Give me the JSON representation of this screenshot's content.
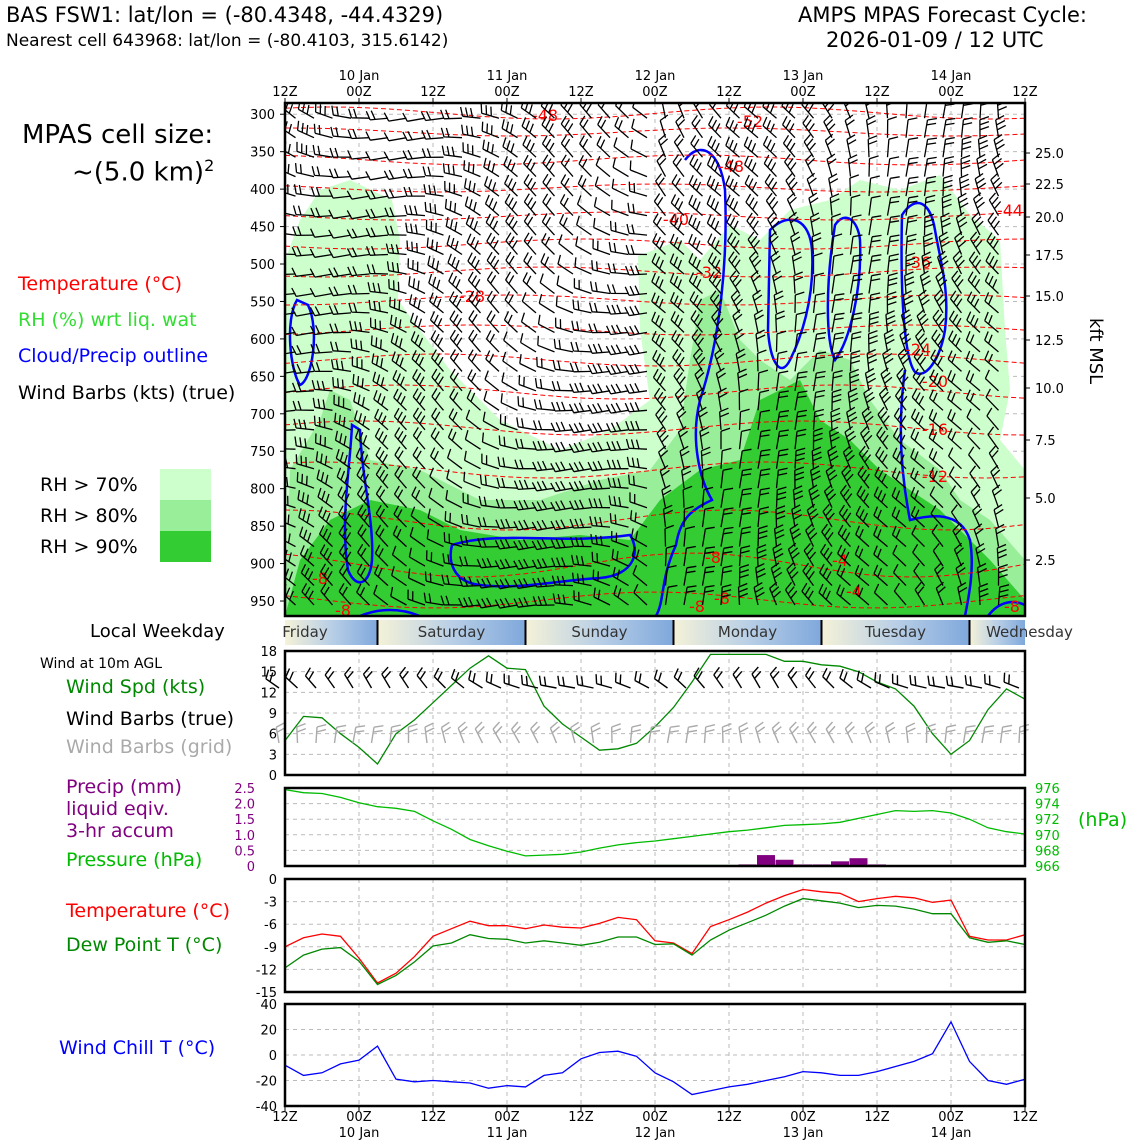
{
  "header": {
    "station": "BAS FSW1: lat/lon = (-80.4348, -44.4329)",
    "nearest": "Nearest cell 643968: lat/lon = (-80.4103, 315.6142)",
    "cycle_title": "AMPS MPAS Forecast Cycle:",
    "cycle_date": "2026-01-09 / 12 UTC"
  },
  "cell_size": {
    "line1": "MPAS cell size:",
    "line2": "~(5.0 km)",
    "sup": "2"
  },
  "legend": {
    "temperature": "Temperature (°C)",
    "rh": "RH (%) wrt liq. wat",
    "cloud": "Cloud/Precip outline",
    "barbs": "Wind Barbs (kts) (true)",
    "rh70": "RH > 70%",
    "rh80": "RH > 80%",
    "rh90": "RH > 90%"
  },
  "colors": {
    "temperature": "#ff0000",
    "rh_label": "#33dd33",
    "cloud": "#0000ff",
    "rh70": "#ccffcc",
    "rh80": "#99ee99",
    "rh90": "#33cc33",
    "wind_speed": "#008800",
    "precip": "#800080",
    "pressure": "#00bb00",
    "dewpoint": "#008800",
    "windchill": "#0000ff",
    "grid_barbs": "#aaaaaa"
  },
  "local_weekday": {
    "label": "Local Weekday",
    "days": [
      "Friday",
      "Saturday",
      "Sunday",
      "Monday",
      "Tuesday",
      "Wednesday"
    ]
  },
  "wind_panel": {
    "title": "Wind at 10m AGL",
    "label_speed": "Wind Spd (kts)",
    "label_barbs_true": "Wind Barbs (true)",
    "label_barbs_grid": "Wind Barbs (grid)"
  },
  "precip_panel": {
    "label1": "Precip (mm)",
    "label2": "liquid eqiv.",
    "label3": "3-hr accum",
    "label_pressure": "Pressure (hPa)",
    "unit_right": "(hPa)"
  },
  "temp_panel": {
    "label_t": "Temperature (°C)",
    "label_td": "Dew Point T (°C)"
  },
  "chill_panel": {
    "label": "Wind Chill T (°C)"
  },
  "time_axis": {
    "hour_labels": [
      "12Z",
      "00Z",
      "12Z",
      "00Z",
      "12Z",
      "00Z",
      "12Z",
      "00Z",
      "12Z",
      "00Z",
      "12Z"
    ],
    "date_labels": [
      "10 Jan",
      "11 Jan",
      "12 Jan",
      "13 Jan",
      "14 Jan"
    ]
  },
  "chart_data": [
    {
      "type": "heatmap",
      "name": "time-height cross section",
      "y_left_label": "",
      "y_left_ticks": [
        300,
        350,
        400,
        450,
        500,
        550,
        600,
        650,
        700,
        750,
        800,
        850,
        900,
        950
      ],
      "y_right_label": "kft MSL",
      "y_right_ticks": [
        "25.0",
        "22.5",
        "20.0",
        "17.5",
        "15.0",
        "12.5",
        "10.0",
        "7.5",
        "5.0",
        "2.5"
      ],
      "ylim": [
        970,
        285
      ],
      "temperature_contour_labels": [
        "-48",
        "-52",
        "-48",
        "-44",
        "-40",
        "-36",
        "-32",
        "-28",
        "-24",
        "-20",
        "-16",
        "-12",
        "-8",
        "-8",
        "-8",
        "-8",
        "-8",
        "-4",
        "-8",
        "-4"
      ],
      "rh_levels": [
        70,
        80,
        90
      ]
    },
    {
      "type": "line",
      "name": "wind speed 10m",
      "x_hours": [
        0,
        3,
        6,
        9,
        12,
        15,
        18,
        21,
        24,
        27,
        30,
        33,
        36,
        39,
        42,
        45,
        48,
        51,
        54,
        57,
        60,
        63,
        66,
        69,
        72,
        75,
        78,
        81,
        84,
        87,
        90,
        93,
        96,
        99,
        102,
        105,
        108,
        111,
        114,
        117,
        120
      ],
      "values": [
        5,
        8.5,
        8.3,
        6,
        4,
        1.6,
        6,
        8,
        10.5,
        13,
        15.5,
        17.3,
        15.5,
        15.3,
        10,
        7.4,
        5.5,
        3.6,
        3.8,
        4.6,
        7,
        9.8,
        13.5,
        17.5,
        17.5,
        17.5,
        17.5,
        16.5,
        16.5,
        16,
        15.8,
        15,
        13.5,
        12.5,
        10,
        6,
        3,
        5,
        9.5,
        12.5,
        11
      ],
      "ylim": [
        0,
        18
      ],
      "y_ticks": [
        "0",
        "3",
        "6",
        "9",
        "12",
        "15",
        "18"
      ]
    },
    {
      "type": "line",
      "name": "pressure",
      "x_hours": [
        0,
        3,
        6,
        9,
        12,
        15,
        18,
        21,
        24,
        27,
        30,
        33,
        36,
        39,
        42,
        45,
        48,
        51,
        54,
        57,
        60,
        63,
        66,
        69,
        72,
        75,
        78,
        81,
        84,
        87,
        90,
        93,
        96,
        99,
        102,
        105,
        108,
        111,
        114,
        117,
        120
      ],
      "values": [
        975.8,
        975.4,
        975.3,
        974.8,
        974.1,
        973.6,
        973.4,
        973.0,
        971.8,
        970.7,
        969.4,
        968.6,
        967.9,
        967.3,
        967.4,
        967.5,
        967.8,
        968.3,
        968.7,
        969.0,
        969.2,
        969.5,
        969.8,
        970.1,
        970.4,
        970.6,
        970.9,
        971.2,
        971.3,
        971.4,
        971.6,
        972.1,
        972.6,
        973.1,
        973.0,
        973.1,
        972.8,
        972.0,
        970.9,
        970.4,
        970.1
      ],
      "ylim": [
        966,
        976
      ],
      "y_ticks_right": [
        "976",
        "974",
        "972",
        "970",
        "968",
        "966"
      ]
    },
    {
      "type": "bar",
      "name": "precip 3-hr accum",
      "x_hours": [
        75,
        78,
        81,
        84,
        87,
        90,
        93,
        96
      ],
      "values": [
        0.05,
        0.35,
        0.2,
        0.05,
        0.05,
        0.15,
        0.25,
        0.05
      ],
      "ylim": [
        0,
        2.5
      ],
      "y_ticks_left": [
        "0",
        "0.5",
        "1.0",
        "1.5",
        "2.0",
        "2.5"
      ]
    },
    {
      "type": "line",
      "name": "temperature and dew point",
      "x_hours": [
        0,
        3,
        6,
        9,
        12,
        15,
        18,
        21,
        24,
        27,
        30,
        33,
        36,
        39,
        42,
        45,
        48,
        51,
        54,
        57,
        60,
        63,
        66,
        69,
        72,
        75,
        78,
        81,
        84,
        87,
        90,
        93,
        96,
        99,
        102,
        105,
        108,
        111,
        114,
        117,
        120
      ],
      "series": [
        {
          "name": "Temperature (°C)",
          "values": [
            -9,
            -7.8,
            -7.3,
            -7.6,
            -10.5,
            -13.8,
            -12.5,
            -10.3,
            -7.6,
            -6.6,
            -5.6,
            -6.2,
            -6.2,
            -6.6,
            -6.1,
            -6.4,
            -6.5,
            -5.9,
            -5.1,
            -5.4,
            -8.2,
            -8.5,
            -9.9,
            -6.3,
            -5.4,
            -4.4,
            -3.2,
            -2.2,
            -1.4,
            -1.7,
            -1.9,
            -3.0,
            -2.6,
            -2.3,
            -2.5,
            -3.1,
            -2.8,
            -7.6,
            -8.1,
            -8.1,
            -7.4
          ]
        },
        {
          "name": "Dew Point T (°C)",
          "values": [
            -11.8,
            -10.1,
            -9.3,
            -9.1,
            -10.9,
            -14.0,
            -12.8,
            -11.0,
            -8.9,
            -8.5,
            -7.4,
            -7.9,
            -8.0,
            -8.5,
            -8.2,
            -8.5,
            -8.8,
            -8.4,
            -7.7,
            -7.7,
            -8.7,
            -8.6,
            -10.1,
            -8.1,
            -6.8,
            -5.8,
            -4.8,
            -3.6,
            -2.6,
            -2.9,
            -3.2,
            -3.8,
            -3.5,
            -3.6,
            -4.0,
            -4.6,
            -4.6,
            -7.8,
            -8.4,
            -8.2,
            -8.7
          ]
        }
      ],
      "ylim": [
        -15,
        0
      ],
      "y_ticks": [
        "0",
        "-3",
        "-6",
        "-9",
        "-12",
        "-15"
      ]
    },
    {
      "type": "line",
      "name": "wind chill",
      "x_hours": [
        0,
        3,
        6,
        9,
        12,
        15,
        18,
        21,
        24,
        27,
        30,
        33,
        36,
        39,
        42,
        45,
        48,
        51,
        54,
        57,
        60,
        63,
        66,
        69,
        72,
        75,
        78,
        81,
        84,
        87,
        90,
        93,
        96,
        99,
        102,
        105,
        108,
        111,
        114,
        117,
        120
      ],
      "values": [
        -8,
        -16,
        -14,
        -7,
        -4,
        7,
        -19,
        -21,
        -20,
        -21,
        -22,
        -26,
        -24,
        -25,
        -16,
        -14,
        -3,
        2,
        3,
        -1,
        -14,
        -21,
        -31,
        -28,
        -25,
        -23,
        -20,
        -17,
        -13,
        -14,
        -16,
        -16,
        -13,
        -9,
        -5,
        1,
        26,
        -5,
        -20,
        -23,
        -19
      ],
      "ylim": [
        -40,
        40
      ],
      "y_ticks": [
        "40",
        "20",
        "0",
        "-20",
        "-40"
      ]
    }
  ]
}
